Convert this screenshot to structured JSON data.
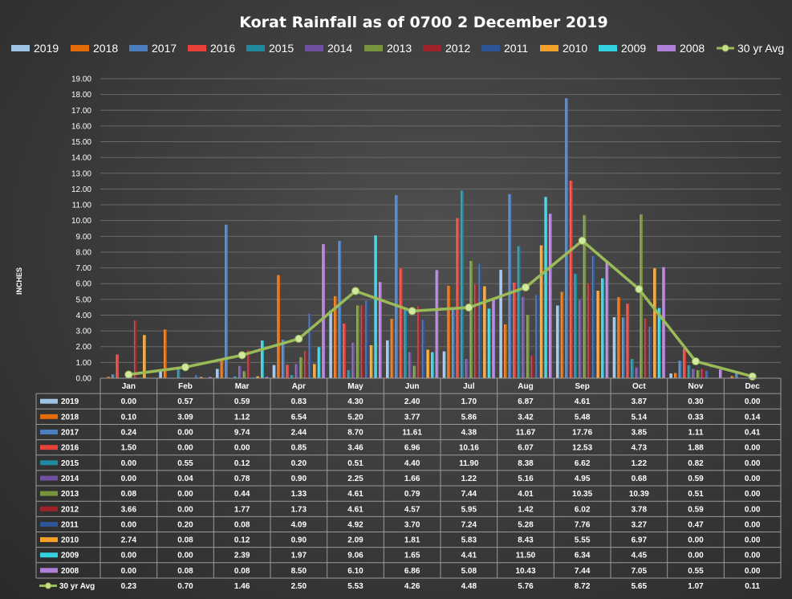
{
  "chart_data": {
    "type": "bar",
    "title": "Korat Rainfall as of 0700 2 December 2019",
    "ylabel": "INCHES",
    "xlabel": "",
    "ylim": [
      0,
      19
    ],
    "ytick_labels": [
      "0.00",
      "1.00",
      "2.00",
      "3.00",
      "4.00",
      "5.00",
      "6.00",
      "7.00",
      "8.00",
      "9.00",
      "10.00",
      "11.00",
      "12.00",
      "13.00",
      "14.00",
      "15.00",
      "16.00",
      "17.00",
      "18.00",
      "19.00"
    ],
    "grid": true,
    "legend_position": "top",
    "categories": [
      "Jan",
      "Feb",
      "Mar",
      "Apr",
      "May",
      "Jun",
      "Jul",
      "Aug",
      "Sep",
      "Oct",
      "Nov",
      "Dec"
    ],
    "series": [
      {
        "name": "2019",
        "color": "#9dc3e6",
        "values": [
          0.0,
          0.57,
          0.59,
          0.83,
          4.3,
          2.4,
          1.7,
          6.87,
          4.61,
          3.87,
          0.3,
          0.0
        ]
      },
      {
        "name": "2018",
        "color": "#e36c09",
        "values": [
          0.1,
          3.09,
          1.12,
          6.54,
          5.2,
          3.77,
          5.86,
          3.42,
          5.48,
          5.14,
          0.33,
          0.14
        ]
      },
      {
        "name": "2017",
        "color": "#4a7ebf",
        "values": [
          0.24,
          0.0,
          9.74,
          2.44,
          8.7,
          11.61,
          4.38,
          11.67,
          17.76,
          3.85,
          1.11,
          0.41
        ]
      },
      {
        "name": "2016",
        "color": "#e8413a",
        "values": [
          1.5,
          0.0,
          0.0,
          0.85,
          3.46,
          6.96,
          10.16,
          6.07,
          12.53,
          4.73,
          1.88,
          0.0
        ]
      },
      {
        "name": "2015",
        "color": "#1f8a9e",
        "values": [
          0.0,
          0.55,
          0.12,
          0.2,
          0.51,
          4.4,
          11.9,
          8.38,
          6.62,
          1.22,
          0.82,
          0.0
        ]
      },
      {
        "name": "2014",
        "color": "#7050a0",
        "values": [
          0.0,
          0.04,
          0.78,
          0.9,
          2.25,
          1.66,
          1.22,
          5.16,
          4.95,
          0.68,
          0.59,
          0.0
        ]
      },
      {
        "name": "2013",
        "color": "#77933c",
        "values": [
          0.08,
          0.0,
          0.44,
          1.33,
          4.61,
          0.79,
          7.44,
          4.01,
          10.35,
          10.39,
          0.51,
          0.0
        ]
      },
      {
        "name": "2012",
        "color": "#a0232a",
        "values": [
          3.66,
          0.0,
          1.77,
          1.73,
          4.61,
          4.57,
          5.95,
          1.42,
          6.02,
          3.78,
          0.59,
          0.0
        ]
      },
      {
        "name": "2011",
        "color": "#2e5597",
        "values": [
          0.0,
          0.2,
          0.08,
          4.09,
          4.92,
          3.7,
          7.24,
          5.28,
          7.76,
          3.27,
          0.47,
          0.0
        ]
      },
      {
        "name": "2010",
        "color": "#f5a029",
        "values": [
          2.74,
          0.08,
          0.12,
          0.9,
          2.09,
          1.81,
          5.83,
          8.43,
          5.55,
          6.97,
          0.0,
          0.0
        ]
      },
      {
        "name": "2009",
        "color": "#33d0e0",
        "values": [
          0.0,
          0.0,
          2.39,
          1.97,
          9.06,
          1.65,
          4.41,
          11.5,
          6.34,
          4.45,
          0.0,
          0.0
        ]
      },
      {
        "name": "2008",
        "color": "#b07fd8",
        "values": [
          0.0,
          0.08,
          0.08,
          8.5,
          6.1,
          6.86,
          5.08,
          10.43,
          7.44,
          7.05,
          0.55,
          0.0
        ]
      }
    ],
    "line_series": {
      "name": "30 yr Avg",
      "color": "#9bbb59",
      "values": [
        0.23,
        0.7,
        1.46,
        2.5,
        5.53,
        4.26,
        4.48,
        5.76,
        8.72,
        5.65,
        1.07,
        0.11
      ]
    }
  }
}
